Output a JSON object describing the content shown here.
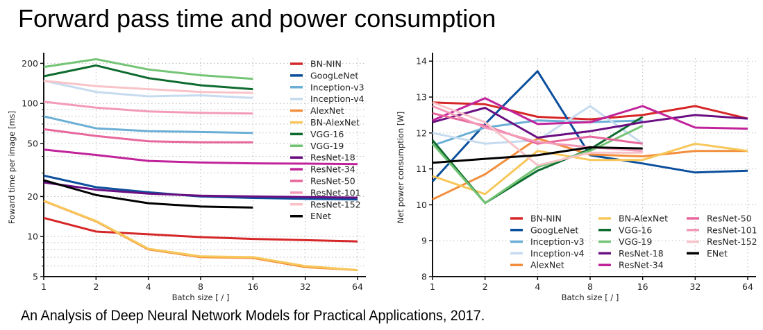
{
  "page": {
    "title": "Forward pass time and power consumption",
    "caption": "An Analysis of Deep Neural Network Models for Practical Applications, 2017."
  },
  "series_colors": {
    "BN-NIN": "#d62728",
    "GoogLeNet": "#0b4f9c",
    "Inception-v3": "#6aaed6",
    "Inception-v4": "#c6dbef",
    "AlexNet": "#f28e3c",
    "BN-AlexNet": "#f7c75a",
    "VGG-16": "#0d6b2e",
    "VGG-19": "#74c476",
    "ResNet-18": "#6a0f82",
    "ResNet-34": "#c0239a",
    "ResNet-50": "#e7679c",
    "ResNet-101": "#f39ab8",
    "ResNet-152": "#f8c3c8",
    "ENet": "#000000"
  },
  "chart_data": [
    {
      "type": "line",
      "title": "",
      "xlabel": "Batch size [ / ]",
      "ylabel": "Foward time per image [ms]",
      "xscale": "log2",
      "yscale": "log",
      "x": [
        1,
        2,
        4,
        8,
        16,
        32,
        64
      ],
      "xticks": [
        "1",
        "2",
        "4",
        "8",
        "16",
        "32",
        "64"
      ],
      "yticks": [
        5,
        10,
        20,
        50,
        100,
        200
      ],
      "ytick_labels": [
        "5",
        "10",
        "20",
        "50",
        "100",
        "200"
      ],
      "ylim": [
        5,
        230
      ],
      "grid": true,
      "legend": "right",
      "series": [
        {
          "name": "BN-NIN",
          "values": [
            13.8,
            10.9,
            10.4,
            9.9,
            9.6,
            9.4,
            9.2
          ]
        },
        {
          "name": "GoogLeNet",
          "values": [
            28.7,
            23.5,
            21.5,
            20.0,
            19.5,
            19.2,
            19.0
          ]
        },
        {
          "name": "Inception-v3",
          "values": [
            80,
            65,
            62,
            61,
            60
          ]
        },
        {
          "name": "Inception-v4",
          "values": [
            148,
            122,
            113,
            115,
            110
          ]
        },
        {
          "name": "AlexNet",
          "values": [
            18.5,
            13.0,
            8.0,
            7.0,
            6.9,
            5.9,
            5.6
          ]
        },
        {
          "name": "BN-AlexNet",
          "values": [
            18.6,
            13.1,
            8.1,
            7.1,
            7.0,
            6.0,
            5.6
          ]
        },
        {
          "name": "VGG-16",
          "values": [
            160,
            193,
            155,
            137,
            128
          ]
        },
        {
          "name": "VGG-19",
          "values": [
            188,
            215,
            180,
            163,
            153
          ]
        },
        {
          "name": "ResNet-18",
          "values": [
            25.5,
            22.5,
            21.0,
            20.3,
            20.0,
            19.8,
            19.6
          ]
        },
        {
          "name": "ResNet-34",
          "values": [
            45,
            41,
            37,
            36,
            35.5,
            35.3,
            35.0
          ]
        },
        {
          "name": "ResNet-50",
          "values": [
            64,
            57,
            52,
            51,
            51
          ]
        },
        {
          "name": "ResNet-101",
          "values": [
            103,
            93,
            87,
            85,
            84
          ]
        },
        {
          "name": "ResNet-152",
          "values": [
            148,
            135,
            128,
            122,
            120
          ]
        },
        {
          "name": "ENet",
          "values": [
            26.5,
            20.5,
            17.8,
            16.8,
            16.5
          ]
        }
      ]
    },
    {
      "type": "line",
      "title": "",
      "xlabel": "Batch size [ / ]",
      "ylabel": "Net power consumption [W]",
      "xscale": "log2",
      "yscale": "linear",
      "x": [
        1,
        2,
        4,
        8,
        16,
        32,
        64
      ],
      "xticks": [
        "1",
        "2",
        "4",
        "8",
        "16",
        "32",
        "64"
      ],
      "yticks": [
        8,
        9,
        10,
        11,
        12,
        13,
        14
      ],
      "ytick_labels": [
        "8",
        "9",
        "10",
        "11",
        "12",
        "13",
        "14"
      ],
      "ylim": [
        8,
        14.2
      ],
      "grid": true,
      "legend": "lower-right",
      "series": [
        {
          "name": "BN-NIN",
          "values": [
            12.85,
            12.8,
            12.45,
            12.38,
            12.5,
            12.75,
            12.4
          ]
        },
        {
          "name": "GoogLeNet",
          "values": [
            10.65,
            12.25,
            13.72,
            11.38,
            11.15,
            10.9,
            10.95
          ]
        },
        {
          "name": "Inception-v3",
          "values": [
            11.65,
            12.15,
            12.35,
            12.3,
            12.35
          ]
        },
        {
          "name": "Inception-v4",
          "values": [
            12.0,
            11.7,
            11.8,
            12.75,
            11.7
          ]
        },
        {
          "name": "AlexNet",
          "values": [
            10.15,
            10.85,
            11.85,
            11.4,
            11.35,
            11.5,
            11.5
          ]
        },
        {
          "name": "BN-AlexNet",
          "values": [
            10.8,
            10.3,
            11.5,
            11.25,
            11.25,
            11.7,
            11.5
          ]
        },
        {
          "name": "VGG-16",
          "values": [
            11.8,
            10.05,
            10.95,
            11.55,
            12.45
          ]
        },
        {
          "name": "VGG-19",
          "values": [
            11.7,
            10.05,
            11.05,
            11.5,
            12.2
          ]
        },
        {
          "name": "ResNet-18",
          "values": [
            12.3,
            12.7,
            11.87,
            12.05,
            12.3,
            12.5,
            12.4
          ]
        },
        {
          "name": "ResNet-34",
          "values": [
            12.35,
            12.97,
            12.25,
            12.3,
            12.75,
            12.15,
            12.12
          ]
        },
        {
          "name": "ResNet-50",
          "values": [
            12.55,
            12.2,
            11.7,
            11.9,
            11.7
          ]
        },
        {
          "name": "ResNet-101",
          "values": [
            12.75,
            12.15,
            11.75,
            11.6,
            11.5
          ]
        },
        {
          "name": "ResNet-152",
          "values": [
            12.85,
            12.3,
            11.1,
            11.45,
            11.45
          ]
        },
        {
          "name": "ENet",
          "values": [
            11.17,
            11.28,
            11.38,
            11.6,
            11.57
          ]
        }
      ]
    }
  ]
}
